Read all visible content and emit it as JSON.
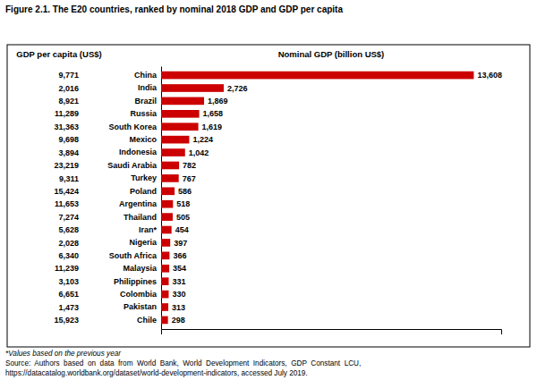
{
  "chart_data": {
    "type": "bar",
    "orientation": "horizontal",
    "title": "Figure 2.1. The E20 countries, ranked by nominal 2018 GDP and GDP per capita",
    "categories": [
      "China",
      "India",
      "Brazil",
      "Russia",
      "South Korea",
      "Mexico",
      "Indonesia",
      "Saudi Arabia",
      "Turkey",
      "Poland",
      "Argentina",
      "Thailand",
      "Iran*",
      "Nigeria",
      "South Africa",
      "Malaysia",
      "Philippines",
      "Colombia",
      "Pakistan",
      "Chile"
    ],
    "values": [
      13608,
      2726,
      1869,
      1658,
      1619,
      1224,
      1042,
      782,
      767,
      586,
      518,
      505,
      454,
      397,
      366,
      354,
      331,
      330,
      313,
      298
    ],
    "value_labels": [
      "13,608",
      "2,726",
      "1,869",
      "1,658",
      "1,619",
      "1,224",
      "1,042",
      "782",
      "767",
      "586",
      "518",
      "505",
      "454",
      "397",
      "366",
      "354",
      "331",
      "330",
      "313",
      "298"
    ],
    "color": "#cc0000",
    "data_labels": true,
    "xlabel": "Nominal GDP (billion US$)",
    "xlim": [
      0,
      14800
    ],
    "xticks": [],
    "tick_labels": "y",
    "grid": false,
    "gdp_per_capita": {
      "name": "GDP per capita (US$)",
      "values": [
        9771,
        2016,
        8921,
        11289,
        31363,
        9698,
        3894,
        23219,
        9311,
        15424,
        11653,
        7274,
        5628,
        2028,
        6340,
        11239,
        3103,
        6651,
        1473,
        15923
      ],
      "value_labels": [
        "9,771",
        "2,016",
        "8,921",
        "11,289",
        "31,363",
        "9,698",
        "3,894",
        "23,219",
        "9,311",
        "15,424",
        "11,653",
        "7,274",
        "5,628",
        "2,028",
        "6,340",
        "11,239",
        "3,103",
        "6,651",
        "1,473",
        "15,923"
      ]
    },
    "notes": [
      "*Values based on the previous year",
      "Source:  Authors  based  on  data  from  World  Bank,  World  Development  Indicators,  GDP  Constant  LCU,",
      "https://datacatalog.worldbank.org/dataset/world-development-indicators, accessed July 2019."
    ]
  }
}
